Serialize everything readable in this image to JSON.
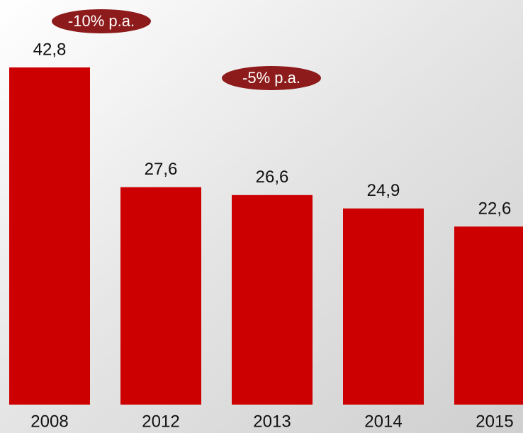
{
  "chart_data": {
    "type": "bar",
    "categories": [
      "2008",
      "2012",
      "2013",
      "2014",
      "2015"
    ],
    "values": [
      42.8,
      27.6,
      26.6,
      24.9,
      22.6
    ],
    "value_labels": [
      "42,8",
      "27,6",
      "26,6",
      "24,9",
      "22,6"
    ],
    "color": "#cc0000",
    "annotations": [
      {
        "text": "-10% p.a."
      },
      {
        "text": "-5% p.a."
      }
    ],
    "annotation_color": "#8e1b1b"
  }
}
